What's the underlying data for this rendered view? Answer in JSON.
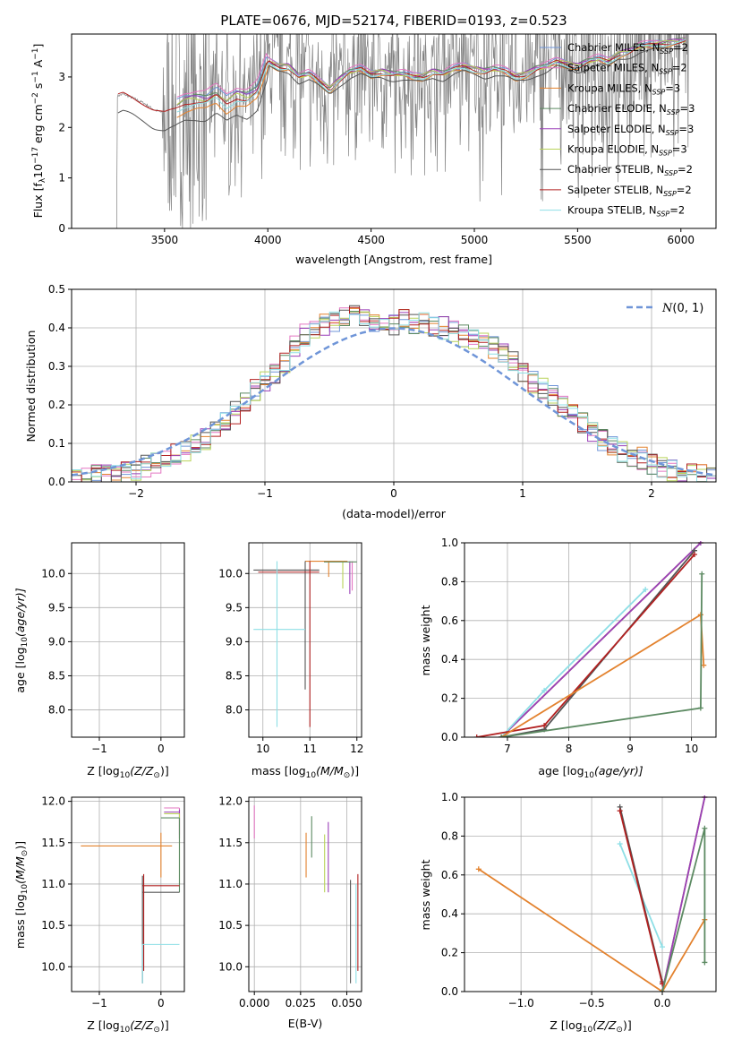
{
  "title": "PLATE=0676, MJD=52174, FIBERID=0193, z=0.523",
  "chart_data": [
    {
      "id": "spectrum",
      "type": "line",
      "xlabel": "wavelength [Angstrom, rest frame]",
      "ylabel": "Flux [f$_\\lambda$10$^{-17}$ erg cm$^{-2}$ s$^{-1}$ A$^{-1}$]",
      "ylabel_main": "Flux [f",
      "ylabel_lambda": "λ",
      "ylabel_mid": "10",
      "ylabel_exp1": "−17",
      "ylabel_erg": " erg cm",
      "ylabel_exp2": "−2",
      "ylabel_s": " s",
      "ylabel_exp3": "−1",
      "ylabel_A": " A",
      "ylabel_exp4": "−1",
      "ylabel_close": "]",
      "xlim": [
        3050,
        6170
      ],
      "ylim": [
        0,
        3.85
      ],
      "xticks": [
        3500,
        4000,
        4500,
        5000,
        5500,
        6000
      ],
      "yticks": [
        0,
        1,
        2,
        3
      ],
      "grid": false,
      "legend": "top-right",
      "legend_entries": [
        {
          "pre": "Chabrier MILES, N",
          "sub": "SSP",
          "post": "=2",
          "color": "#6f95d8"
        },
        {
          "pre": "Salpeter MILES, N",
          "sub": "SSP",
          "post": "=2",
          "color": "#e377c2"
        },
        {
          "pre": "Kroupa MILES, N",
          "sub": "SSP",
          "post": "=3",
          "color": "#e3822e"
        },
        {
          "pre": "Chabrier ELODIE, N",
          "sub": "SSP",
          "post": "=3",
          "color": "#5c8a62"
        },
        {
          "pre": "Salpeter ELODIE, N",
          "sub": "SSP",
          "post": "=3",
          "color": "#9a3fb8"
        },
        {
          "pre": "Kroupa ELODIE, N",
          "sub": "SSP",
          "post": "=3",
          "color": "#b9d35a"
        },
        {
          "pre": "Chabrier STELIB, N",
          "sub": "SSP",
          "post": "=2",
          "color": "#555555"
        },
        {
          "pre": "Salpeter STELIB, N",
          "sub": "SSP",
          "post": "=2",
          "color": "#b22020"
        },
        {
          "pre": "Kroupa STELIB, N",
          "sub": "SSP",
          "post": "=2",
          "color": "#8edfe6"
        }
      ],
      "data_color": "#808080",
      "continuum": [
        [
          3270,
          2.62
        ],
        [
          3300,
          2.66
        ],
        [
          3350,
          2.58
        ],
        [
          3400,
          2.48
        ],
        [
          3450,
          2.35
        ],
        [
          3500,
          2.28
        ],
        [
          3550,
          2.35
        ],
        [
          3600,
          2.48
        ],
        [
          3650,
          2.52
        ],
        [
          3700,
          2.5
        ],
        [
          3750,
          2.62
        ],
        [
          3800,
          2.45
        ],
        [
          3850,
          2.6
        ],
        [
          3900,
          2.55
        ],
        [
          3950,
          2.7
        ],
        [
          4000,
          3.3
        ],
        [
          4050,
          3.2
        ],
        [
          4100,
          3.2
        ],
        [
          4150,
          3.0
        ],
        [
          4200,
          3.05
        ],
        [
          4250,
          2.9
        ],
        [
          4300,
          2.75
        ],
        [
          4350,
          2.95
        ],
        [
          4400,
          3.1
        ],
        [
          4450,
          3.15
        ],
        [
          4500,
          3.05
        ],
        [
          4550,
          3.1
        ],
        [
          4600,
          3.05
        ],
        [
          4650,
          3.05
        ],
        [
          4700,
          3.0
        ],
        [
          4750,
          3.0
        ],
        [
          4800,
          3.1
        ],
        [
          4850,
          3.05
        ],
        [
          4900,
          3.15
        ],
        [
          4950,
          3.2
        ],
        [
          5000,
          3.15
        ],
        [
          5050,
          3.1
        ],
        [
          5100,
          3.15
        ],
        [
          5150,
          3.1
        ],
        [
          5200,
          3.0
        ],
        [
          5250,
          3.05
        ],
        [
          5300,
          3.15
        ],
        [
          5350,
          3.2
        ],
        [
          5400,
          3.3
        ],
        [
          5450,
          3.25
        ],
        [
          5500,
          3.2
        ],
        [
          5550,
          3.3
        ],
        [
          5600,
          3.35
        ],
        [
          5650,
          3.3
        ],
        [
          5700,
          3.45
        ],
        [
          5750,
          3.5
        ],
        [
          5800,
          3.6
        ],
        [
          5850,
          3.62
        ],
        [
          5900,
          3.65
        ],
        [
          5950,
          3.68
        ],
        [
          6000,
          3.7
        ],
        [
          6030,
          3.72
        ]
      ]
    },
    {
      "id": "residuals",
      "type": "bar",
      "xlabel": "(data-model)/error",
      "ylabel": "Normed distribution",
      "xlim": [
        -2.5,
        2.5
      ],
      "ylim": [
        0,
        0.5
      ],
      "xticks": [
        -2,
        -1,
        0,
        1,
        2
      ],
      "yticks": [
        0.0,
        0.1,
        0.2,
        0.3,
        0.4,
        0.5
      ],
      "grid": true,
      "legend": "top-right",
      "legend_label": "N(0, 1)",
      "legend_script": "N",
      "legend_args": "(0, 1)",
      "gauss_color": "#6f95d8",
      "bin_width": 0.1,
      "bin_start": -2.5,
      "hist_heights": [
        0.01,
        0.01,
        0.015,
        0.02,
        0.02,
        0.025,
        0.03,
        0.04,
        0.05,
        0.06,
        0.07,
        0.08,
        0.1,
        0.11,
        0.13,
        0.16,
        0.18,
        0.21,
        0.24,
        0.26,
        0.28,
        0.31,
        0.35,
        0.38,
        0.4,
        0.41,
        0.42,
        0.43,
        0.43,
        0.42,
        0.42,
        0.41,
        0.41,
        0.42,
        0.41,
        0.41,
        0.4,
        0.4,
        0.39,
        0.38,
        0.37,
        0.36,
        0.35,
        0.33,
        0.31,
        0.29,
        0.26,
        0.24,
        0.22,
        0.2,
        0.18,
        0.15,
        0.13,
        0.11,
        0.09,
        0.08,
        0.07,
        0.06,
        0.05,
        0.04,
        0.03,
        0.025,
        0.02,
        0.015,
        0.01
      ]
    },
    {
      "id": "age-vs-Z",
      "type": "scatter",
      "xlabel_pre": "Z [log",
      "xlabel_sub": "10",
      "xlabel_post": "(Z/Z",
      "xlabel_sun": "⊙",
      "xlabel_end": ")]",
      "ylabel_pre": "age  [log",
      "ylabel_sub": "10",
      "ylabel_post": "(age/yr)]",
      "xlim": [
        -1.45,
        0.38
      ],
      "ylim": [
        7.6,
        10.45
      ],
      "xticks": [
        -1,
        0
      ],
      "yticks": [
        8.0,
        8.5,
        9.0,
        9.5,
        10.0
      ],
      "grid": true
    },
    {
      "id": "age-vs-mass",
      "type": "scatter",
      "xlabel_pre": "mass [log",
      "xlabel_sub": "10",
      "xlabel_post": "(M/M",
      "xlabel_sun": "⊙",
      "xlabel_end": ")]",
      "xlim": [
        9.7,
        12.1
      ],
      "ylim": [
        7.6,
        10.45
      ],
      "xticks": [
        10,
        11,
        12
      ],
      "yticks": [
        8.0,
        8.5,
        9.0,
        9.5,
        10.0
      ],
      "grid": true
    },
    {
      "id": "massweight-vs-age",
      "type": "line",
      "xlabel_pre": "age  [log",
      "xlabel_sub": "10",
      "xlabel_post": "(age/yr)]",
      "ylabel": "mass weight",
      "xlim": [
        6.3,
        10.4
      ],
      "ylim": [
        0,
        1
      ],
      "xticks": [
        7,
        8,
        9,
        10
      ],
      "yticks": [
        0.0,
        0.2,
        0.4,
        0.6,
        0.8,
        1.0
      ],
      "grid": true,
      "series": [
        {
          "color": "#e377c2",
          "points": [
            [
              6.9,
              0.0
            ],
            [
              10.15,
              1.0
            ]
          ]
        },
        {
          "color": "#b9d35a",
          "points": [
            [
              6.9,
              0.0
            ],
            [
              10.15,
              1.0
            ]
          ]
        },
        {
          "color": "#9a3fb8",
          "points": [
            [
              6.9,
              0.0
            ],
            [
              10.15,
              1.0
            ]
          ]
        },
        {
          "color": "#8edfe6",
          "points": [
            [
              6.9,
              0.0
            ],
            [
              7.6,
              0.24
            ],
            [
              9.25,
              0.76
            ]
          ]
        },
        {
          "color": "#555555",
          "points": [
            [
              6.9,
              0.0
            ],
            [
              7.6,
              0.04
            ],
            [
              10.05,
              0.96
            ]
          ]
        },
        {
          "color": "#b22020",
          "points": [
            [
              6.5,
              0.0
            ],
            [
              7.6,
              0.06
            ],
            [
              10.05,
              0.94
            ]
          ]
        },
        {
          "color": "#e3822e",
          "points": [
            [
              6.9,
              0.0
            ],
            [
              10.15,
              0.63
            ],
            [
              10.2,
              0.37
            ]
          ]
        },
        {
          "color": "#5c8a62",
          "points": [
            [
              6.9,
              0.0
            ],
            [
              10.15,
              0.15
            ],
            [
              10.17,
              0.84
            ]
          ]
        }
      ]
    },
    {
      "id": "mass-vs-Z",
      "type": "scatter",
      "xlabel_pre": "Z [log",
      "xlabel_sub": "10",
      "xlabel_post": "(Z/Z",
      "xlabel_sun": "⊙",
      "xlabel_end": ")]",
      "ylabel_pre": "mass [log",
      "ylabel_sub": "10",
      "ylabel_post": "(M/M",
      "ylabel_sun": "⊙",
      "ylabel_end": ")]",
      "xlim": [
        -1.45,
        0.38
      ],
      "ylim": [
        9.7,
        12.05
      ],
      "xticks": [
        -1,
        0
      ],
      "yticks": [
        10.0,
        10.5,
        11.0,
        11.5,
        12.0
      ],
      "grid": true
    },
    {
      "id": "mass-vs-EBV",
      "type": "scatter",
      "xlabel": "E(B-V)",
      "xlim": [
        -0.003,
        0.058
      ],
      "ylim": [
        9.7,
        12.05
      ],
      "xticks": [
        0.0,
        0.025,
        0.05
      ],
      "xtick_labels": [
        "0.000",
        "0.025",
        "0.050"
      ],
      "yticks": [
        10.0,
        10.5,
        11.0,
        11.5,
        12.0
      ],
      "grid": true
    },
    {
      "id": "massweight-vs-Z",
      "type": "line",
      "xlabel_pre": "Z [log",
      "xlabel_sub": "10",
      "xlabel_post": "(Z/Z",
      "xlabel_sun": "⊙",
      "xlabel_end": ")]",
      "ylabel": "mass weight",
      "xlim": [
        -1.4,
        0.38
      ],
      "ylim": [
        0,
        1
      ],
      "xticks": [
        -1.0,
        -0.5,
        0.0
      ],
      "yticks": [
        0.0,
        0.2,
        0.4,
        0.6,
        0.8,
        1.0
      ],
      "grid": true,
      "series": [
        {
          "color": "#e377c2",
          "points": [
            [
              0.0,
              0.0
            ],
            [
              0.3,
              1.0
            ]
          ]
        },
        {
          "color": "#b9d35a",
          "points": [
            [
              0.0,
              0.0
            ],
            [
              0.3,
              1.0
            ]
          ]
        },
        {
          "color": "#9a3fb8",
          "points": [
            [
              0.0,
              0.0
            ],
            [
              0.3,
              1.0
            ]
          ]
        },
        {
          "color": "#8edfe6",
          "points": [
            [
              -0.3,
              0.76
            ],
            [
              0.0,
              0.23
            ]
          ]
        },
        {
          "color": "#555555",
          "points": [
            [
              -0.3,
              0.95
            ],
            [
              0.0,
              0.05
            ]
          ]
        },
        {
          "color": "#b22020",
          "points": [
            [
              -0.3,
              0.93
            ],
            [
              0.0,
              0.04
            ]
          ]
        },
        {
          "color": "#e3822e",
          "points": [
            [
              -1.3,
              0.63
            ],
            [
              0.0,
              0.0
            ],
            [
              0.3,
              0.37
            ]
          ]
        },
        {
          "color": "#5c8a62",
          "points": [
            [
              0.0,
              0.0
            ],
            [
              0.3,
              0.84
            ],
            [
              0.3,
              0.15
            ]
          ]
        }
      ]
    }
  ]
}
